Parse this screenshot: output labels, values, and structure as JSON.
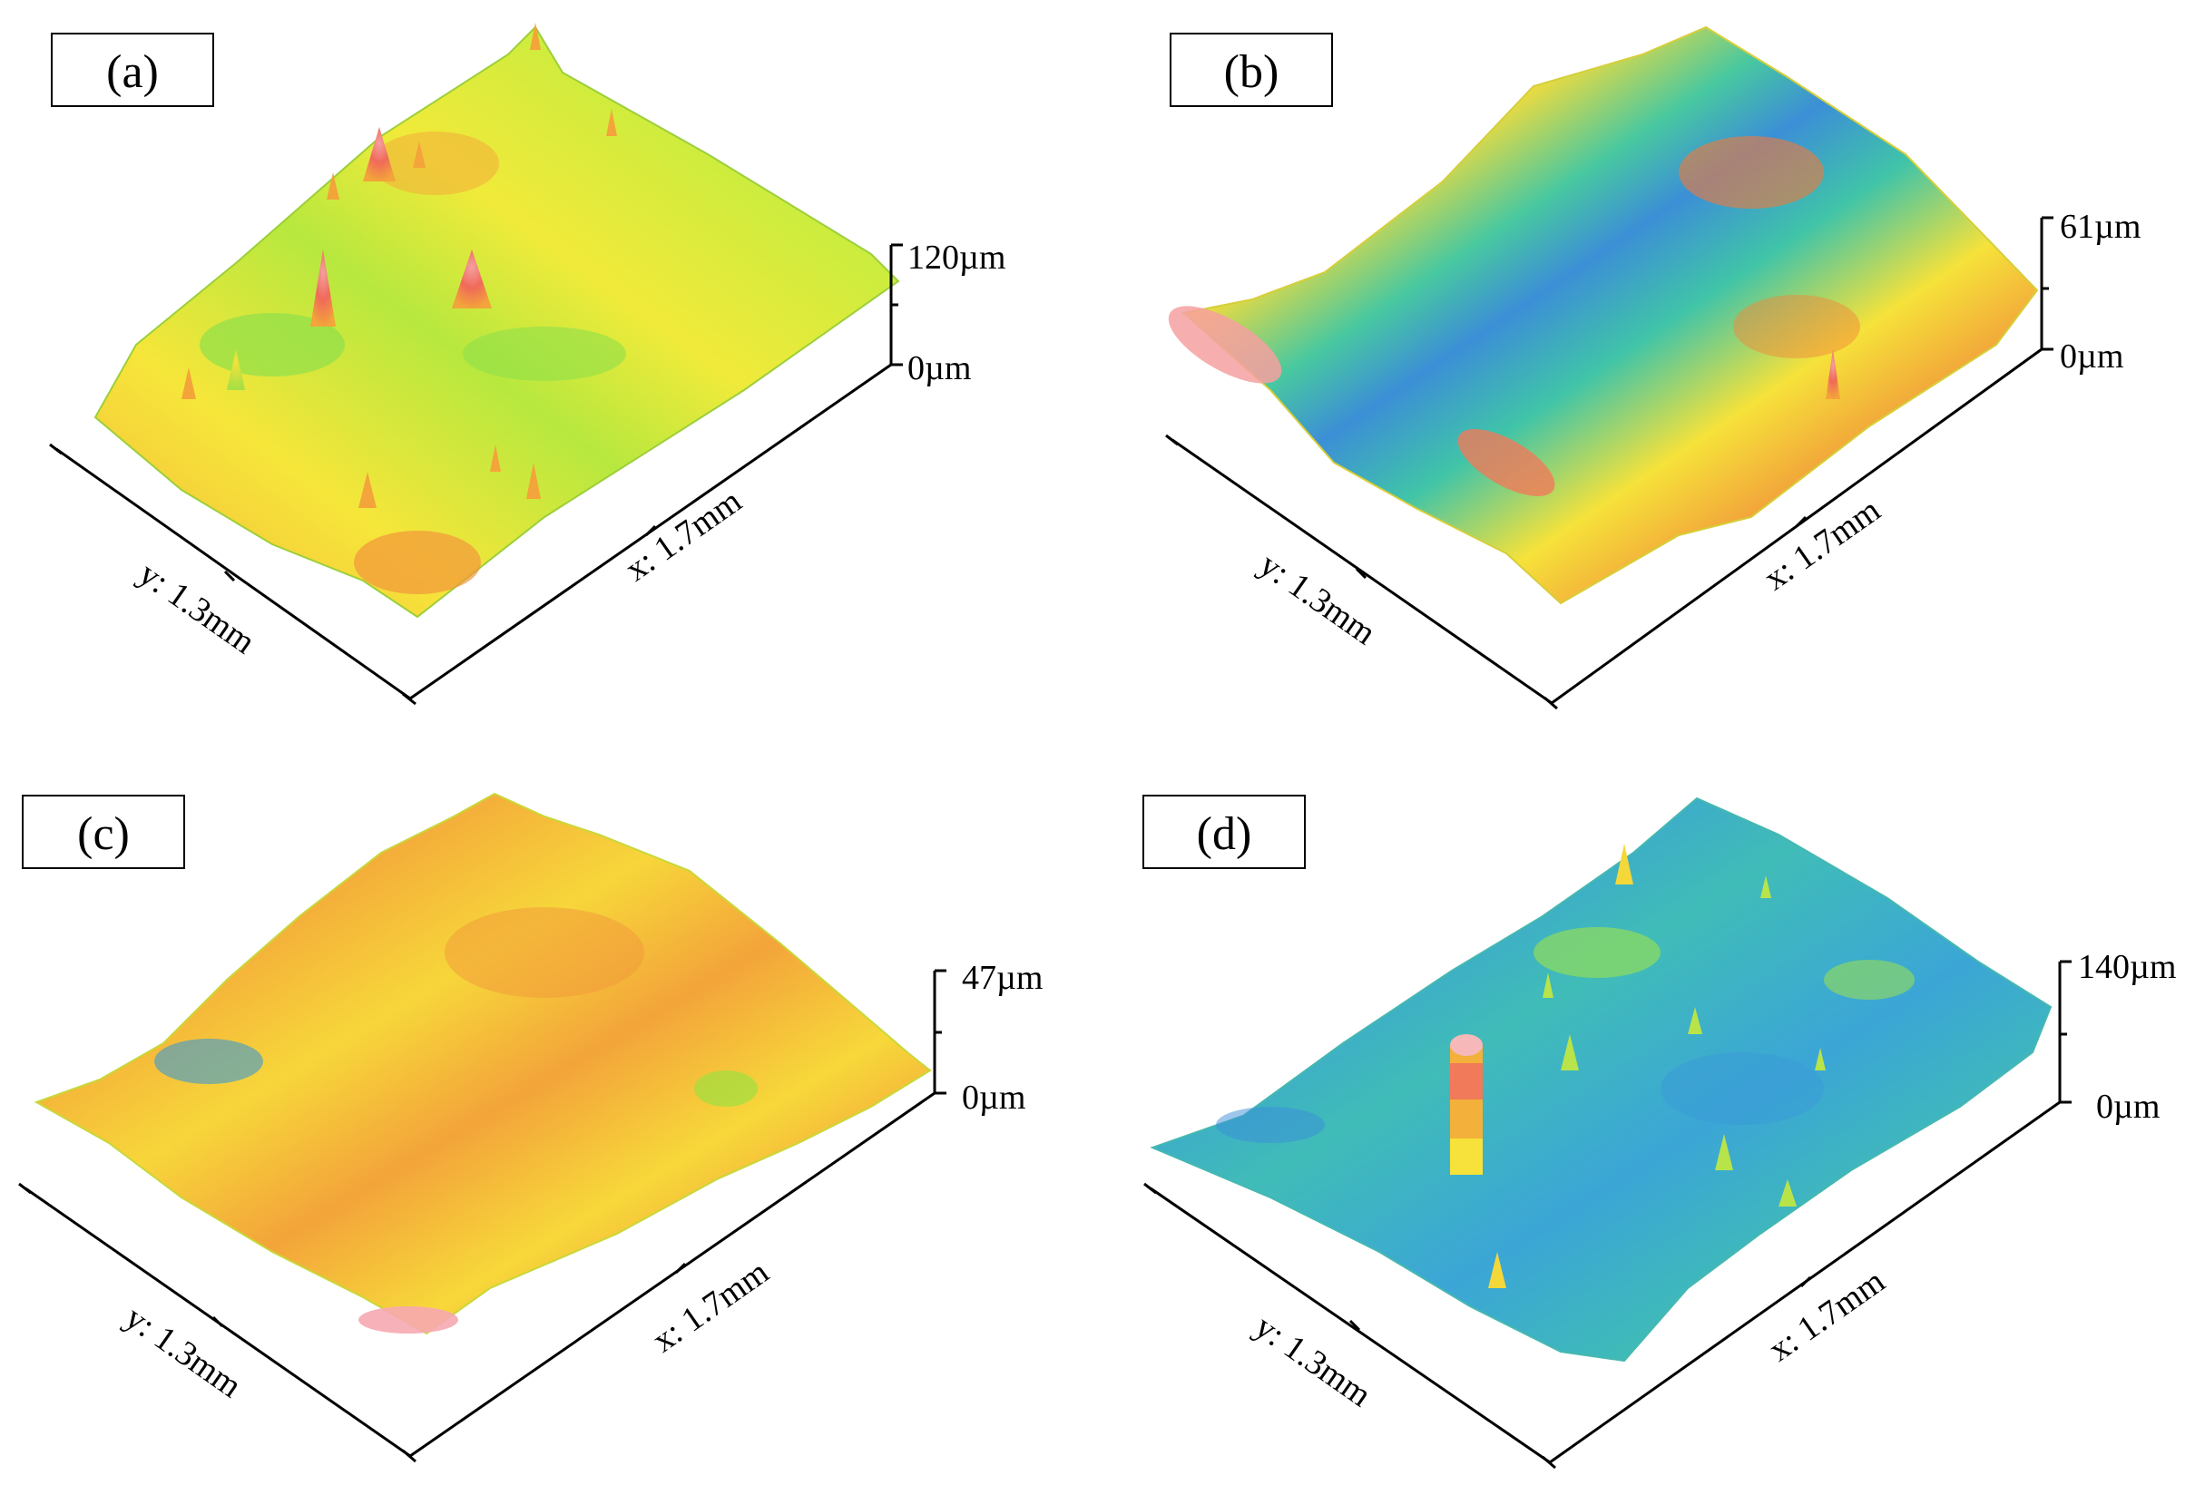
{
  "panels": [
    {
      "id": "a",
      "label": "(a)",
      "y_axis_label": "y: 1.3mm",
      "x_axis_label": "x: 1.7mm",
      "z_max_label": "120µm",
      "z_min_label": "0µm",
      "surface": "mostly yellow-green plane with many sharp red/orange peaks",
      "dominant_colors": [
        "#f6e63a",
        "#b5e83d",
        "#f2a43a",
        "#f06a5a"
      ]
    },
    {
      "id": "b",
      "label": "(b)",
      "y_axis_label": "y: 1.3mm",
      "x_axis_label": "x: 1.7mm",
      "z_max_label": "61µm",
      "z_min_label": "0µm",
      "surface": "wavy surface with orange ridges and a blue-green trough",
      "dominant_colors": [
        "#f08a3a",
        "#f6d83a",
        "#36c6a0",
        "#3c8fd6"
      ]
    },
    {
      "id": "c",
      "label": "(c)",
      "y_axis_label": "y: 1.3mm",
      "x_axis_label": "x: 1.7mm",
      "z_max_label": "47µm",
      "z_min_label": "0µm",
      "surface": "broad orange/yellow undulating surface with green edges",
      "dominant_colors": [
        "#f3a23a",
        "#f7d23a",
        "#a8e040",
        "#3c8fd6"
      ]
    },
    {
      "id": "d",
      "label": "(d)",
      "y_axis_label": "y: 1.3mm",
      "x_axis_label": "x: 1.7mm",
      "z_max_label": "140µm",
      "z_min_label": "0µm",
      "surface": "mostly cyan-blue plane with scattered green/yellow peaks and one tall red column",
      "dominant_colors": [
        "#38c2b8",
        "#3ea0d8",
        "#9ee24a",
        "#f4e23a",
        "#f07a6a"
      ]
    }
  ]
}
